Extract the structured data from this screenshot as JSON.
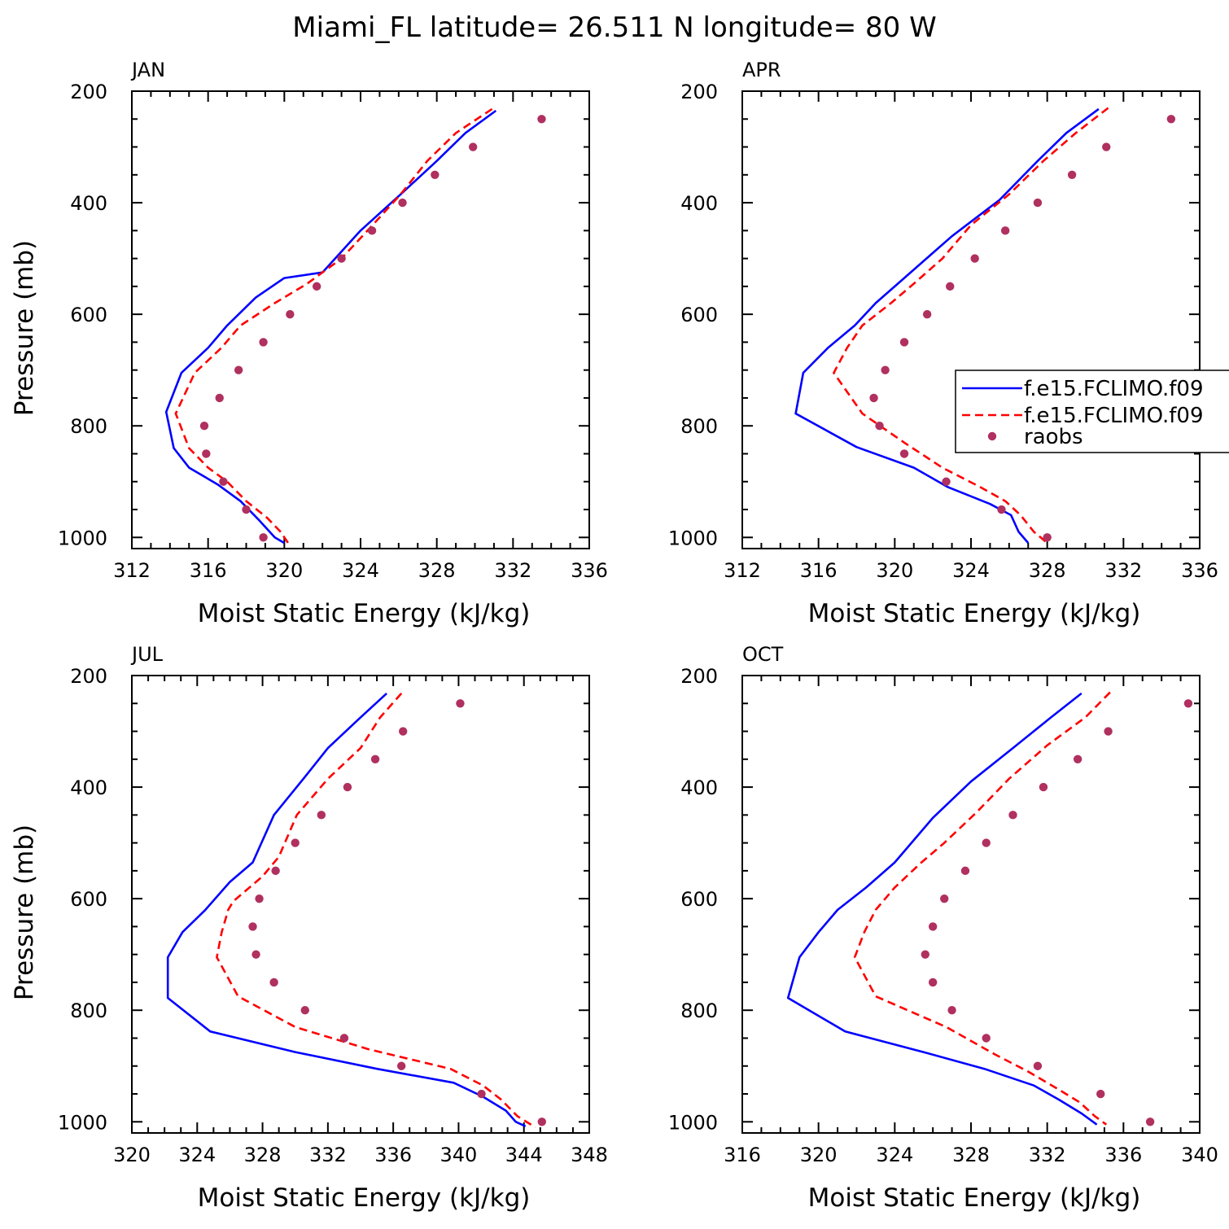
{
  "title": "Miami_FL  latitude= 26.511 N longitude= 80 W",
  "colors": {
    "model_a": "#0000ff",
    "model_b": "#ff0000",
    "obs": "#b03060"
  },
  "legend": {
    "location": "APR panel, right edge (clipped)",
    "entries": [
      "f.e15.FCLIMO.f09",
      "f.e15.FCLIMO.f09",
      "raobs"
    ]
  },
  "chart_data": [
    {
      "type": "line",
      "panel_label": "JAN",
      "xlabel": "Moist Static Energy (kJ/kg)",
      "ylabel": "Pressure (mb)",
      "xlim": [
        312,
        336
      ],
      "ylim": [
        1020,
        200
      ],
      "xticks": [
        312,
        316,
        320,
        324,
        328,
        332,
        336
      ],
      "yticks": [
        200,
        400,
        600,
        800,
        1000
      ],
      "legend": false,
      "series": [
        {
          "style": "solid",
          "color": "#0000ff",
          "points": [
            [
              331.1,
              235
            ],
            [
              329.5,
              275
            ],
            [
              328.0,
              325
            ],
            [
              326.1,
              385
            ],
            [
              324.0,
              450
            ],
            [
              322.0,
              525
            ],
            [
              320.0,
              535
            ],
            [
              318.5,
              570
            ],
            [
              317.0,
              620
            ],
            [
              316.0,
              660
            ],
            [
              314.6,
              705
            ],
            [
              313.8,
              775
            ],
            [
              314.2,
              840
            ],
            [
              315.0,
              875
            ],
            [
              316.5,
              905
            ],
            [
              317.7,
              935
            ],
            [
              318.7,
              970
            ],
            [
              319.5,
              1000
            ],
            [
              320.0,
              1010
            ]
          ]
        },
        {
          "style": "dashed",
          "color": "#ff0000",
          "points": [
            [
              330.9,
              232
            ],
            [
              329.0,
              275
            ],
            [
              327.5,
              325
            ],
            [
              326.1,
              385
            ],
            [
              324.5,
              445
            ],
            [
              323.0,
              500
            ],
            [
              321.2,
              545
            ],
            [
              319.5,
              580
            ],
            [
              317.7,
              620
            ],
            [
              316.7,
              660
            ],
            [
              315.3,
              705
            ],
            [
              314.3,
              778
            ],
            [
              315.0,
              840
            ],
            [
              316.0,
              875
            ],
            [
              317.0,
              900
            ],
            [
              318.0,
              935
            ],
            [
              319.1,
              965
            ],
            [
              319.8,
              990
            ],
            [
              320.2,
              1010
            ]
          ]
        },
        {
          "style": "dots",
          "color": "#b03060",
          "points": [
            [
              333.5,
              250
            ],
            [
              329.9,
              300
            ],
            [
              327.9,
              350
            ],
            [
              326.2,
              400
            ],
            [
              324.6,
              450
            ],
            [
              323.0,
              500
            ],
            [
              321.7,
              550
            ],
            [
              320.3,
              600
            ],
            [
              318.9,
              650
            ],
            [
              317.6,
              700
            ],
            [
              316.6,
              750
            ],
            [
              315.8,
              800
            ],
            [
              315.9,
              850
            ],
            [
              316.8,
              900
            ],
            [
              318.0,
              950
            ],
            [
              318.9,
              1000
            ]
          ]
        }
      ]
    },
    {
      "type": "line",
      "panel_label": "APR",
      "xlabel": "Moist Static Energy (kJ/kg)",
      "ylabel": "",
      "xlim": [
        312,
        336
      ],
      "ylim": [
        1020,
        200
      ],
      "xticks": [
        312,
        316,
        320,
        324,
        328,
        332,
        336
      ],
      "yticks": [
        200,
        400,
        600,
        800,
        1000
      ],
      "legend": true,
      "series": [
        {
          "style": "solid",
          "color": "#0000ff",
          "points": [
            [
              330.7,
              232
            ],
            [
              329.0,
              275
            ],
            [
              327.5,
              325
            ],
            [
              325.5,
              395
            ],
            [
              323.0,
              460
            ],
            [
              320.5,
              535
            ],
            [
              319.0,
              580
            ],
            [
              317.9,
              620
            ],
            [
              316.5,
              660
            ],
            [
              315.2,
              705
            ],
            [
              314.8,
              778
            ],
            [
              318.0,
              838
            ],
            [
              321.0,
              875
            ],
            [
              322.8,
              910
            ],
            [
              325.0,
              940
            ],
            [
              326.1,
              960
            ],
            [
              326.5,
              990
            ],
            [
              327.0,
              1010
            ]
          ]
        },
        {
          "style": "dashed",
          "color": "#ff0000",
          "points": [
            [
              331.2,
              230
            ],
            [
              329.5,
              275
            ],
            [
              327.8,
              325
            ],
            [
              326.0,
              385
            ],
            [
              324.0,
              440
            ],
            [
              322.5,
              500
            ],
            [
              321.0,
              545
            ],
            [
              319.8,
              580
            ],
            [
              318.3,
              620
            ],
            [
              317.5,
              660
            ],
            [
              316.8,
              705
            ],
            [
              318.3,
              778
            ],
            [
              320.5,
              830
            ],
            [
              322.5,
              875
            ],
            [
              324.5,
              910
            ],
            [
              325.8,
              935
            ],
            [
              326.6,
              960
            ],
            [
              327.3,
              990
            ],
            [
              328.0,
              1010
            ]
          ]
        },
        {
          "style": "dots",
          "color": "#b03060",
          "points": [
            [
              334.5,
              250
            ],
            [
              331.1,
              300
            ],
            [
              329.3,
              350
            ],
            [
              327.5,
              400
            ],
            [
              325.8,
              450
            ],
            [
              324.2,
              500
            ],
            [
              322.9,
              550
            ],
            [
              321.7,
              600
            ],
            [
              320.5,
              650
            ],
            [
              319.5,
              700
            ],
            [
              318.9,
              750
            ],
            [
              319.2,
              800
            ],
            [
              320.5,
              850
            ],
            [
              322.7,
              900
            ],
            [
              325.6,
              950
            ],
            [
              328.0,
              1000
            ]
          ]
        }
      ]
    },
    {
      "type": "line",
      "panel_label": "JUL",
      "xlabel": "Moist Static Energy (kJ/kg)",
      "ylabel": "Pressure (mb)",
      "xlim": [
        320,
        348
      ],
      "ylim": [
        1020,
        200
      ],
      "xticks": [
        320,
        324,
        328,
        332,
        336,
        340,
        344,
        348
      ],
      "yticks": [
        200,
        400,
        600,
        800,
        1000
      ],
      "legend": false,
      "series": [
        {
          "style": "solid",
          "color": "#0000ff",
          "points": [
            [
              335.6,
              232
            ],
            [
              334.0,
              275
            ],
            [
              332.0,
              330
            ],
            [
              330.5,
              385
            ],
            [
              328.7,
              450
            ],
            [
              327.4,
              535
            ],
            [
              326.0,
              570
            ],
            [
              324.5,
              620
            ],
            [
              323.1,
              660
            ],
            [
              322.2,
              705
            ],
            [
              322.2,
              778
            ],
            [
              324.8,
              838
            ],
            [
              330.0,
              875
            ],
            [
              335.0,
              905
            ],
            [
              339.7,
              930
            ],
            [
              341.5,
              955
            ],
            [
              342.9,
              980
            ],
            [
              343.5,
              1000
            ],
            [
              344.1,
              1008
            ]
          ]
        },
        {
          "style": "dashed",
          "color": "#ff0000",
          "points": [
            [
              336.5,
              232
            ],
            [
              335.2,
              275
            ],
            [
              334.0,
              330
            ],
            [
              332.0,
              385
            ],
            [
              330.1,
              450
            ],
            [
              329.0,
              525
            ],
            [
              328.0,
              560
            ],
            [
              326.2,
              605
            ],
            [
              325.9,
              620
            ],
            [
              325.5,
              660
            ],
            [
              325.2,
              705
            ],
            [
              326.5,
              775
            ],
            [
              330.0,
              830
            ],
            [
              334.5,
              870
            ],
            [
              339.5,
              905
            ],
            [
              341.5,
              935
            ],
            [
              342.6,
              960
            ],
            [
              343.6,
              990
            ],
            [
              344.7,
              1010
            ]
          ]
        },
        {
          "style": "dots",
          "color": "#b03060",
          "points": [
            [
              340.1,
              250
            ],
            [
              336.6,
              300
            ],
            [
              334.9,
              350
            ],
            [
              333.2,
              400
            ],
            [
              331.6,
              450
            ],
            [
              330.0,
              500
            ],
            [
              328.8,
              550
            ],
            [
              327.8,
              600
            ],
            [
              327.4,
              650
            ],
            [
              327.6,
              700
            ],
            [
              328.7,
              750
            ],
            [
              330.6,
              800
            ],
            [
              333.0,
              850
            ],
            [
              336.5,
              900
            ],
            [
              341.4,
              950
            ],
            [
              345.1,
              1000
            ]
          ]
        }
      ]
    },
    {
      "type": "line",
      "panel_label": "OCT",
      "xlabel": "Moist Static Energy (kJ/kg)",
      "ylabel": "",
      "xlim": [
        316,
        340
      ],
      "ylim": [
        1020,
        200
      ],
      "xticks": [
        316,
        320,
        324,
        328,
        332,
        336,
        340
      ],
      "yticks": [
        200,
        400,
        600,
        800,
        1000
      ],
      "legend": false,
      "series": [
        {
          "style": "solid",
          "color": "#0000ff",
          "points": [
            [
              333.8,
              232
            ],
            [
              332.2,
              275
            ],
            [
              330.2,
              330
            ],
            [
              328.0,
              390
            ],
            [
              326.0,
              455
            ],
            [
              324.0,
              535
            ],
            [
              322.5,
              580
            ],
            [
              321.0,
              620
            ],
            [
              320.0,
              660
            ],
            [
              319.0,
              705
            ],
            [
              318.4,
              778
            ],
            [
              321.4,
              838
            ],
            [
              325.5,
              875
            ],
            [
              328.7,
              905
            ],
            [
              331.3,
              935
            ],
            [
              332.6,
              960
            ],
            [
              333.8,
              985
            ],
            [
              334.6,
              1005
            ]
          ]
        },
        {
          "style": "dashed",
          "color": "#ff0000",
          "points": [
            [
              335.3,
              230
            ],
            [
              334.0,
              275
            ],
            [
              332.0,
              325
            ],
            [
              330.0,
              385
            ],
            [
              328.3,
              445
            ],
            [
              326.6,
              500
            ],
            [
              325.4,
              535
            ],
            [
              324.0,
              580
            ],
            [
              323.0,
              620
            ],
            [
              322.4,
              660
            ],
            [
              321.9,
              705
            ],
            [
              323.0,
              775
            ],
            [
              326.7,
              830
            ],
            [
              329.3,
              880
            ],
            [
              331.0,
              910
            ],
            [
              332.5,
              940
            ],
            [
              333.7,
              965
            ],
            [
              334.5,
              990
            ],
            [
              335.1,
              1005
            ]
          ]
        },
        {
          "style": "dots",
          "color": "#b03060",
          "points": [
            [
              339.4,
              250
            ],
            [
              335.2,
              300
            ],
            [
              333.6,
              350
            ],
            [
              331.8,
              400
            ],
            [
              330.2,
              450
            ],
            [
              328.8,
              500
            ],
            [
              327.7,
              550
            ],
            [
              326.6,
              600
            ],
            [
              326.0,
              650
            ],
            [
              325.6,
              700
            ],
            [
              326.0,
              750
            ],
            [
              327.0,
              800
            ],
            [
              328.8,
              850
            ],
            [
              331.5,
              900
            ],
            [
              334.8,
              950
            ],
            [
              337.4,
              1000
            ]
          ]
        }
      ]
    }
  ]
}
